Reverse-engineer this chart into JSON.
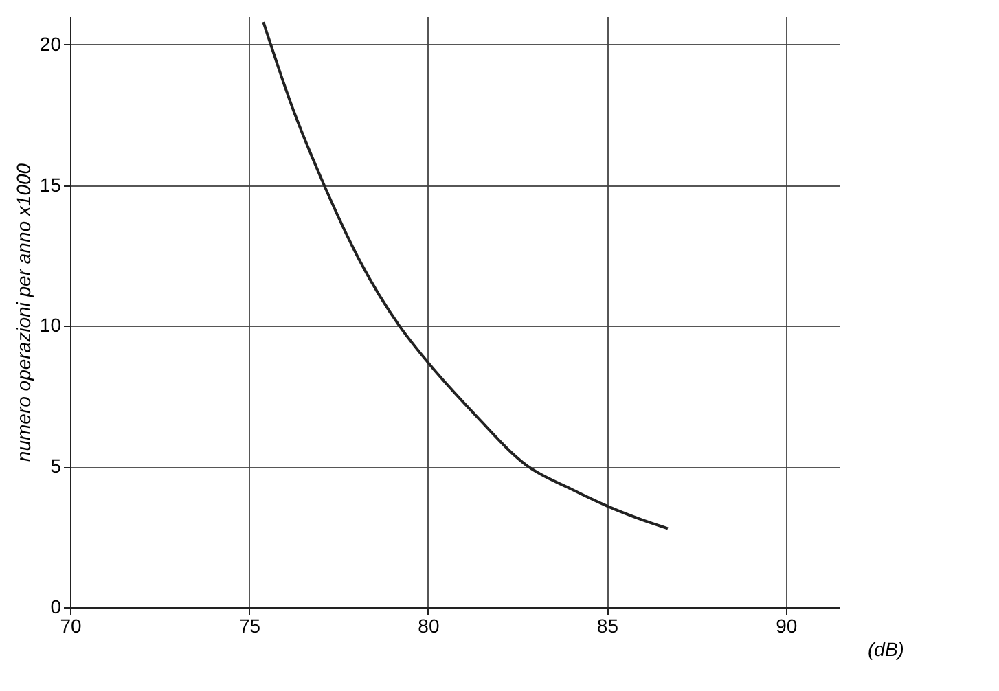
{
  "chart_data": {
    "type": "line",
    "xlabel": "(dB)",
    "ylabel": "numero operazioni per anno x1000",
    "x": [
      75.4,
      76.2,
      77.1,
      78.1,
      79.2,
      80,
      81.2,
      82.8,
      84,
      85,
      86,
      86.7
    ],
    "series": [
      {
        "color": "#222222",
        "values": [
          20.8,
          17.8,
          15,
          12.3,
          10,
          8.7,
          7,
          5,
          4.2,
          3.6,
          3.1,
          2.8
        ]
      }
    ],
    "xlim": [
      70,
      91.5
    ],
    "ylim": [
      0,
      21
    ],
    "xticks": [
      70,
      75,
      80,
      85,
      90
    ],
    "yticks": [
      0,
      5,
      10,
      15,
      20
    ],
    "grid": true,
    "marker": "none",
    "line_style": "solid"
  }
}
